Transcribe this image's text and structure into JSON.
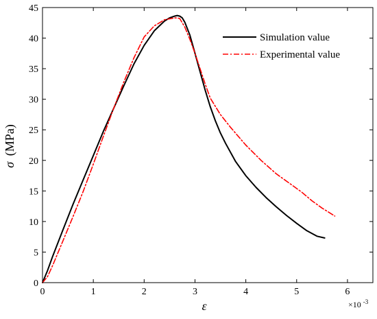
{
  "chart_data": {
    "type": "line",
    "xlabel": "ε",
    "ylabel_symbol": "σ",
    "ylabel_unit": "(MPa)",
    "x_exponent_label": "×10",
    "x_exponent_power": "-3",
    "xlim": [
      0,
      6.5
    ],
    "ylim": [
      0,
      45
    ],
    "x_ticks": [
      "0",
      "1",
      "2",
      "3",
      "4",
      "5",
      "6"
    ],
    "x_tick_values": [
      0,
      1,
      2,
      3,
      4,
      5,
      6
    ],
    "y_ticks": [
      "0",
      "5",
      "10",
      "15",
      "20",
      "25",
      "30",
      "35",
      "40",
      "45"
    ],
    "y_tick_values": [
      0,
      5,
      10,
      15,
      20,
      25,
      30,
      35,
      40,
      45
    ],
    "grid": false,
    "legend_position": "top-right",
    "series": [
      {
        "name": "Simulation value",
        "color": "#000000",
        "style": "solid",
        "x": [
          0,
          0.1,
          0.2,
          0.4,
          0.6,
          0.8,
          1.0,
          1.2,
          1.4,
          1.6,
          1.8,
          2.0,
          2.2,
          2.4,
          2.5,
          2.6,
          2.65,
          2.7,
          2.75,
          2.8,
          2.9,
          3.0,
          3.1,
          3.2,
          3.3,
          3.4,
          3.5,
          3.6,
          3.8,
          4.0,
          4.2,
          4.4,
          4.6,
          4.8,
          5.0,
          5.2,
          5.4,
          5.55
        ],
        "y": [
          0,
          2.0,
          4.3,
          8.6,
          12.8,
          16.8,
          20.8,
          24.8,
          28.5,
          32.2,
          35.8,
          38.8,
          41.2,
          42.8,
          43.3,
          43.6,
          43.7,
          43.6,
          43.3,
          42.6,
          40.5,
          37.5,
          34.5,
          31.5,
          28.8,
          26.5,
          24.5,
          22.8,
          19.8,
          17.5,
          15.6,
          13.9,
          12.4,
          11.0,
          9.7,
          8.5,
          7.6,
          7.3
        ]
      },
      {
        "name": "Experimental value",
        "color": "#ff0000",
        "style": "dashdot",
        "x": [
          0,
          0.1,
          0.2,
          0.4,
          0.6,
          0.8,
          1.0,
          1.2,
          1.4,
          1.6,
          1.8,
          2.0,
          2.2,
          2.4,
          2.6,
          2.65,
          2.7,
          2.8,
          2.9,
          3.0,
          3.1,
          3.2,
          3.3,
          3.5,
          3.7,
          4.0,
          4.3,
          4.6,
          4.9,
          5.1,
          5.3,
          5.5,
          5.75
        ],
        "y": [
          0,
          1.0,
          2.8,
          6.8,
          10.8,
          14.9,
          19.4,
          24.0,
          28.5,
          32.8,
          36.8,
          40.2,
          42.0,
          43.0,
          43.3,
          43.3,
          43.2,
          41.8,
          39.8,
          37.5,
          35.0,
          32.5,
          30.2,
          27.5,
          25.4,
          22.5,
          20.0,
          17.8,
          16.0,
          14.8,
          13.4,
          12.2,
          10.9
        ]
      }
    ]
  }
}
